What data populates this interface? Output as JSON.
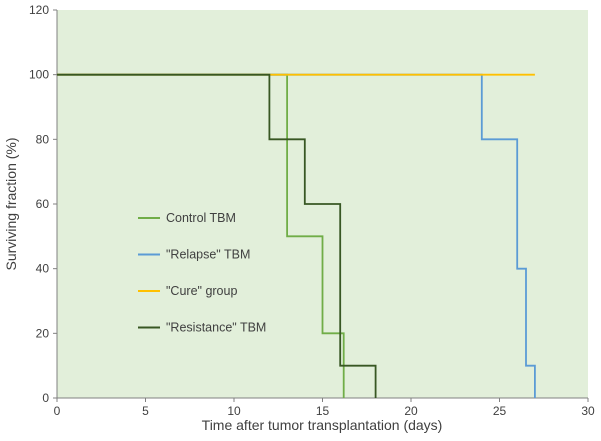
{
  "chart_data": {
    "type": "line",
    "subtype": "step-survival",
    "title": "",
    "xlabel": "Time after tumor transplantation (days)",
    "ylabel": "Surviving fraction (%)",
    "xlim": [
      0,
      30
    ],
    "ylim": [
      0,
      120
    ],
    "xticks": [
      0,
      5,
      10,
      15,
      20,
      25,
      30
    ],
    "yticks": [
      0,
      20,
      40,
      60,
      80,
      100,
      120
    ],
    "grid": false,
    "legend_position": "inside-left-middle",
    "plot_bg": "#e2efda",
    "axis_color": "#808080",
    "text_color": "#404040",
    "series": [
      {
        "name": "Control TBM",
        "color": "#70ad47",
        "points": [
          [
            0,
            100
          ],
          [
            13,
            100
          ],
          [
            13,
            50
          ],
          [
            15,
            50
          ],
          [
            15,
            20
          ],
          [
            16.2,
            20
          ],
          [
            16.2,
            0
          ]
        ]
      },
      {
        "name": "\"Relapse\" TBM",
        "color": "#5b9bd5",
        "points": [
          [
            0,
            100
          ],
          [
            24,
            100
          ],
          [
            24,
            80
          ],
          [
            26,
            80
          ],
          [
            26,
            40
          ],
          [
            26.5,
            40
          ],
          [
            26.5,
            10
          ],
          [
            27,
            10
          ],
          [
            27,
            0
          ]
        ]
      },
      {
        "name": "\"Cure\" group",
        "color": "#ffc000",
        "points": [
          [
            0,
            100
          ],
          [
            27,
            100
          ]
        ]
      },
      {
        "name": "\"Resistance\" TBM",
        "color": "#385723",
        "points": [
          [
            0,
            100
          ],
          [
            12,
            100
          ],
          [
            12,
            80
          ],
          [
            14,
            80
          ],
          [
            14,
            60
          ],
          [
            16,
            60
          ],
          [
            16,
            10
          ],
          [
            18,
            10
          ],
          [
            18,
            0
          ]
        ]
      }
    ]
  }
}
